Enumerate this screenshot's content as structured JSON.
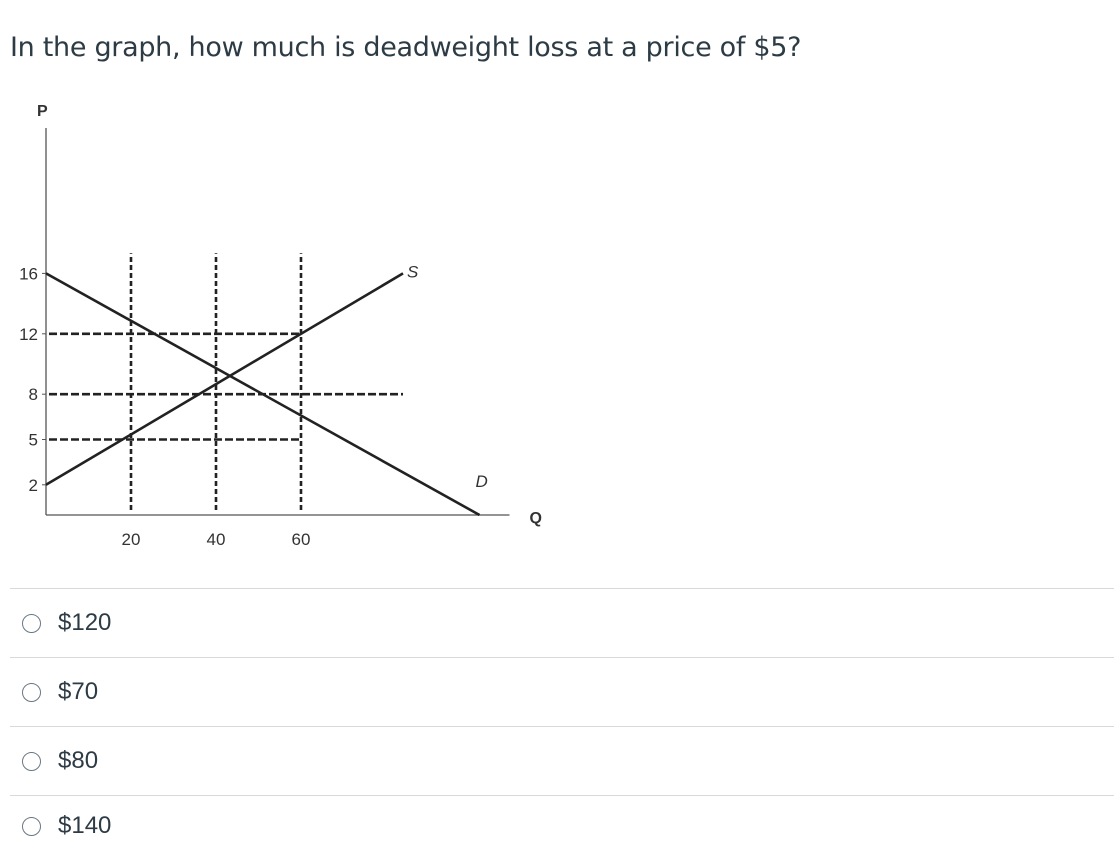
{
  "question": {
    "text": "In the graph, how much is deadweight loss at a price of $5?"
  },
  "chart_data": {
    "type": "line",
    "xlabel": "Q",
    "ylabel": "P",
    "xlim": [
      0,
      102
    ],
    "ylim": [
      0,
      18
    ],
    "x_ticks": [
      20,
      40,
      60
    ],
    "y_ticks": [
      2,
      5,
      8,
      12,
      16
    ],
    "series": [
      {
        "name": "D",
        "x": [
          0,
          102
        ],
        "y": [
          16,
          0
        ]
      },
      {
        "name": "S",
        "x": [
          0,
          84
        ],
        "y": [
          2,
          16
        ]
      }
    ],
    "guide_lines": {
      "vertical_dashed_x": [
        20,
        40,
        60
      ],
      "horizontal_dashed_y": [
        12,
        8,
        5
      ]
    }
  },
  "answers": [
    {
      "label": "$120"
    },
    {
      "label": "$70"
    },
    {
      "label": "$80"
    },
    {
      "label": "$140"
    }
  ],
  "colors": {
    "text": "#2d3b45",
    "divider": "#d7dadd",
    "chart": "#222222"
  },
  "icons": [
    "radio-icon"
  ]
}
